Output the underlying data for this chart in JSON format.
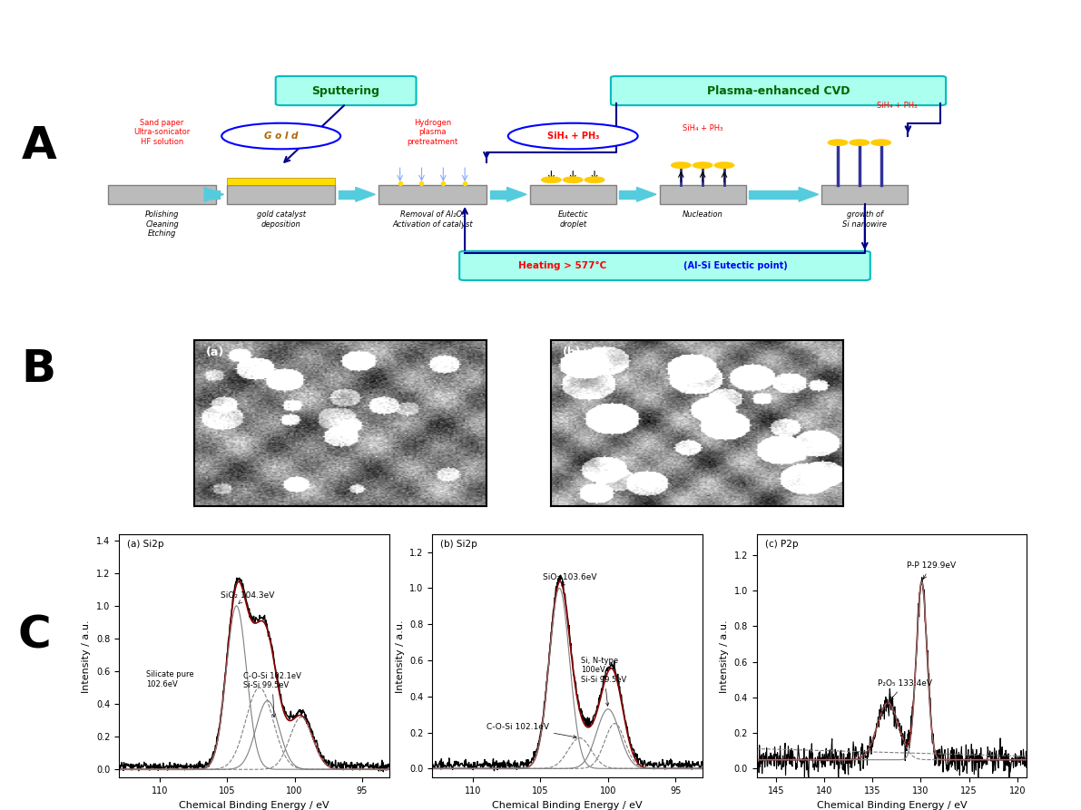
{
  "panel_A_label": "A",
  "panel_B_label": "B",
  "panel_C_label": "C",
  "sputtering_label": "Sputtering",
  "cvd_label": "Plasma-enhanced CVD",
  "step_labels": [
    "Polishing\nCleaning\nEtching",
    "gold catalyst\ndeposition",
    "Removal of Al₂O₃\nActivation of catalyst",
    "Eutectic\ndroplet",
    "Nucleation",
    "growth of\nSi nanowire"
  ],
  "heating_label": "Heating > 577°C",
  "heating_label2": "(Al-Si Eutectic point)",
  "gold_label": "G o l d",
  "sih4_ph3_label": "SiH₄ + PH₃",
  "hydrogen_label": "Hydrogen\nplasma\npretreatment",
  "plot_a_title": "(a) Si2p",
  "plot_b_title": "(b) Si2p",
  "plot_c_title": "(c) P2p",
  "xlabel": "Chemical Binding Energy / eV",
  "ylabel": "Intensity / a.u.",
  "plot_a_xrange": [
    113,
    93
  ],
  "plot_b_xrange": [
    113,
    93
  ],
  "plot_c_xrange": [
    147,
    119
  ],
  "background_color": "#ffffff"
}
